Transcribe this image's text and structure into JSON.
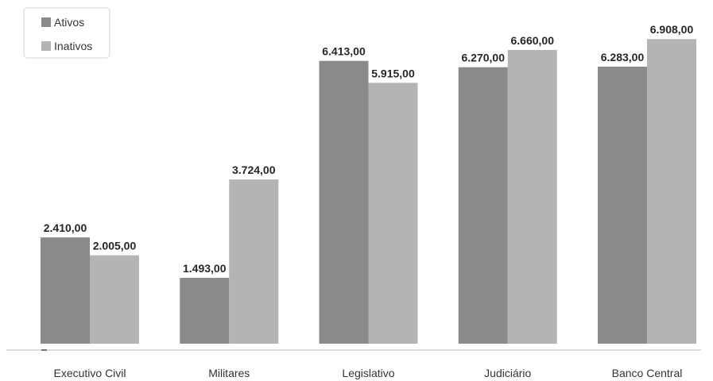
{
  "chart_data": {
    "type": "bar",
    "categories": [
      "Executivo Civil",
      "Militares",
      "Legislativo",
      "Judiciário",
      "Banco Central"
    ],
    "series": [
      {
        "name": "Ativos",
        "color": "#8a8a8c",
        "values": [
          2410,
          1493,
          6413,
          6270,
          6283
        ],
        "labels": [
          "2.410,00",
          "1.493,00",
          "6.413,00",
          "6.270,00",
          "6.283,00"
        ]
      },
      {
        "name": "Inativos",
        "color": "#b4b4b6",
        "values": [
          2005,
          3724,
          5915,
          6660,
          6908
        ],
        "labels": [
          "2.005,00",
          "3.724,00",
          "5.915,00",
          "6.660,00",
          "6.908,00"
        ]
      }
    ],
    "ylim": [
      0,
      7200
    ],
    "grid": false,
    "legend_position": "top-left"
  }
}
